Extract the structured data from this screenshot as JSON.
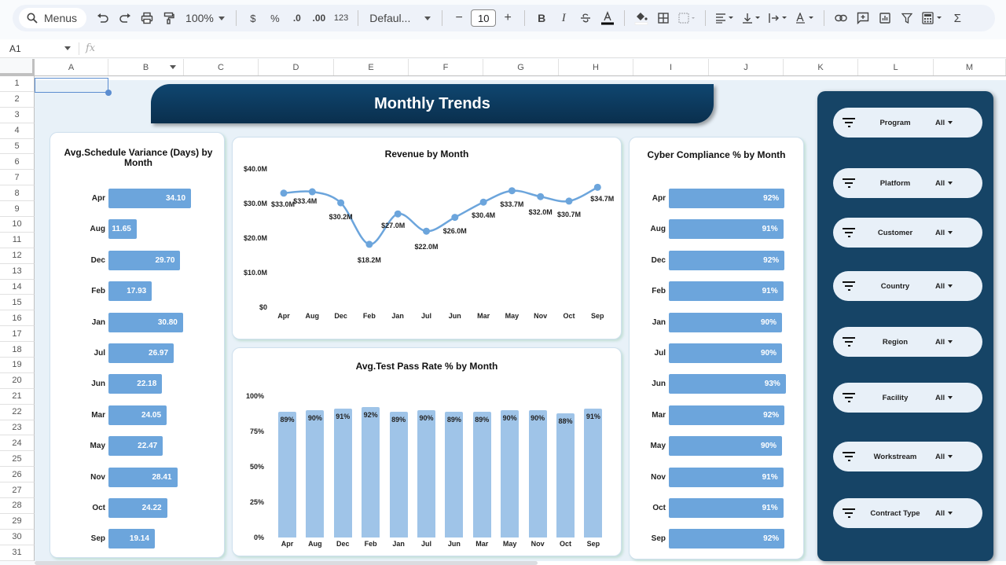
{
  "toolbar": {
    "search_label": "Menus",
    "zoom": "100%",
    "currency": "$",
    "percent": "%",
    "decrease_decimal": ".0",
    "increase_decimal": ".00",
    "number_format": "123",
    "font": "Defaul...",
    "font_size": "10",
    "minus": "−",
    "plus": "+",
    "bold": "B",
    "italic": "I",
    "sigma": "Σ"
  },
  "formula_bar": {
    "cell_ref": "A1",
    "fx": "fx",
    "value": ""
  },
  "columns": [
    "A",
    "B",
    "C",
    "D",
    "E",
    "F",
    "G",
    "H",
    "I",
    "J",
    "K",
    "L",
    "M"
  ],
  "rows": [
    "1",
    "2",
    "3",
    "4",
    "5",
    "6",
    "7",
    "8",
    "9",
    "10",
    "11",
    "12",
    "13",
    "14",
    "15",
    "16",
    "17",
    "18",
    "19",
    "20",
    "21",
    "22",
    "23",
    "24",
    "25",
    "26",
    "27",
    "28",
    "29",
    "30",
    "31"
  ],
  "dashboard": {
    "title": "Monthly Trends",
    "colors": {
      "banner": "#0f4670",
      "panel": "#164466",
      "bar_dark": "#6ca5dc",
      "bar_light": "#9fc4e8",
      "line": "#6ca5dc"
    }
  },
  "chart_data": [
    {
      "type": "bar",
      "orientation": "horizontal",
      "title": "Avg.Schedule Variance (Days) by Month",
      "categories": [
        "Apr",
        "Aug",
        "Dec",
        "Feb",
        "Jan",
        "Jul",
        "Jun",
        "Mar",
        "May",
        "Nov",
        "Oct",
        "Sep"
      ],
      "values": [
        34.1,
        11.65,
        29.7,
        17.93,
        30.8,
        26.97,
        22.18,
        24.05,
        22.47,
        28.41,
        24.22,
        19.14
      ],
      "labels": [
        "34.10",
        "11.65",
        "29.70",
        "17.93",
        "30.80",
        "26.97",
        "22.18",
        "24.05",
        "22.47",
        "28.41",
        "24.22",
        "19.14"
      ],
      "xlabel": "",
      "ylabel": ""
    },
    {
      "type": "line",
      "title": "Revenue by Month",
      "categories": [
        "Apr",
        "Aug",
        "Dec",
        "Feb",
        "Jan",
        "Jul",
        "Jun",
        "Mar",
        "May",
        "Nov",
        "Oct",
        "Sep"
      ],
      "values": [
        33.0,
        33.4,
        30.2,
        18.2,
        27.0,
        22.0,
        26.0,
        30.4,
        33.7,
        32.0,
        30.7,
        34.7
      ],
      "labels": [
        "$33.0M",
        "$33.4M",
        "$30.2M",
        "$18.2M",
        "$27.0M",
        "$22.0M",
        "$26.0M",
        "$30.4M",
        "$33.7M",
        "$32.0M",
        "$30.7M",
        "$34.7M"
      ],
      "yticks": [
        "$40.0M",
        "$30.0M",
        "$20.0M",
        "$10.0M",
        "$0"
      ],
      "ylim": [
        0,
        40
      ],
      "unit": "$M",
      "xlabel": "",
      "ylabel": ""
    },
    {
      "type": "bar",
      "orientation": "vertical",
      "title": "Avg.Test Pass Rate % by Month",
      "categories": [
        "Apr",
        "Aug",
        "Dec",
        "Feb",
        "Jan",
        "Jul",
        "Jun",
        "Mar",
        "May",
        "Nov",
        "Oct",
        "Sep"
      ],
      "values": [
        89,
        90,
        91,
        92,
        89,
        90,
        89,
        89,
        90,
        90,
        88,
        91
      ],
      "labels": [
        "89%",
        "90%",
        "91%",
        "92%",
        "89%",
        "90%",
        "89%",
        "89%",
        "90%",
        "90%",
        "88%",
        "91%"
      ],
      "yticks": [
        "100%",
        "75%",
        "50%",
        "25%",
        "0%"
      ],
      "ylim": [
        0,
        100
      ],
      "xlabel": "",
      "ylabel": ""
    },
    {
      "type": "bar",
      "orientation": "horizontal",
      "title": "Cyber Compliance % by Month",
      "categories": [
        "Apr",
        "Aug",
        "Dec",
        "Feb",
        "Jan",
        "Jul",
        "Jun",
        "Mar",
        "May",
        "Nov",
        "Oct",
        "Sep"
      ],
      "values": [
        92,
        91,
        92,
        91,
        90,
        90,
        93,
        92,
        90,
        91,
        91,
        92
      ],
      "labels": [
        "92%",
        "91%",
        "92%",
        "91%",
        "90%",
        "90%",
        "93%",
        "92%",
        "90%",
        "91%",
        "91%",
        "92%"
      ],
      "xlabel": "",
      "ylabel": ""
    }
  ],
  "slicers": [
    {
      "label": "Program",
      "value": "All"
    },
    {
      "label": "Platform",
      "value": "All"
    },
    {
      "label": "Customer",
      "value": "All"
    },
    {
      "label": "Country",
      "value": "All"
    },
    {
      "label": "Region",
      "value": "All"
    },
    {
      "label": "Facility",
      "value": "All"
    },
    {
      "label": "Workstream",
      "value": "All"
    },
    {
      "label": "Contract Type",
      "value": "All"
    }
  ]
}
